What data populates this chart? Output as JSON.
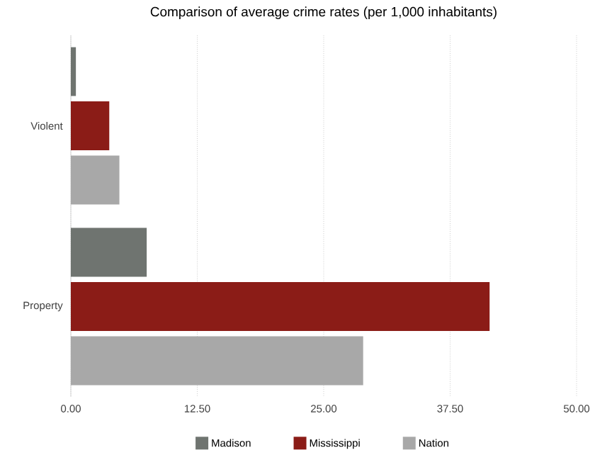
{
  "chart_data": {
    "type": "bar",
    "orientation": "horizontal",
    "title": "Comparison of average crime rates (per 1,000 inhabitants)",
    "categories": [
      "Violent",
      "Property"
    ],
    "series": [
      {
        "name": "Madison",
        "color": "#6f7470",
        "values": [
          0.5,
          7.5
        ]
      },
      {
        "name": "Mississippi",
        "color": "#8b1c17",
        "values": [
          3.8,
          41.4
        ]
      },
      {
        "name": "Nation",
        "color": "#a8a8a8",
        "values": [
          4.8,
          28.9
        ]
      }
    ],
    "xlim": [
      0,
      50
    ],
    "xticks": [
      {
        "value": 0,
        "label": "0.00"
      },
      {
        "value": 12.5,
        "label": "12.50"
      },
      {
        "value": 25,
        "label": "25.00"
      },
      {
        "value": 37.5,
        "label": "37.50"
      },
      {
        "value": 50,
        "label": "50.00"
      }
    ],
    "grid": "x",
    "legend": "bottom"
  }
}
